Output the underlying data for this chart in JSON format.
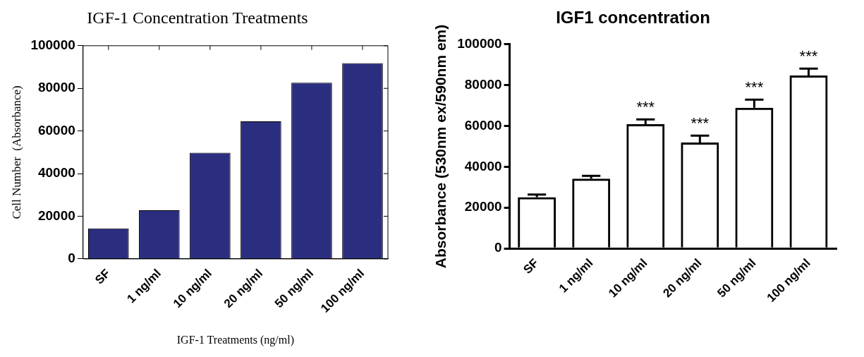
{
  "chart_data": [
    {
      "type": "bar",
      "title": "IGF-1 Concentration Treatments",
      "xlabel": "IGF-1 Treatments (ng/ml)",
      "ylabel": "Cell Number  (Absorbance)",
      "categories": [
        "SF",
        "1 ng/ml",
        "10 ng/ml",
        "20 ng/ml",
        "50 ng/ml",
        "100 ng/ml"
      ],
      "values": [
        14300,
        22800,
        49800,
        64500,
        82600,
        91800
      ],
      "color": "#2b2e7f",
      "ylim": [
        0,
        100000
      ],
      "yticks": [
        0,
        20000,
        40000,
        60000,
        80000,
        100000
      ],
      "grid": false,
      "legend": false
    },
    {
      "type": "bar",
      "title": "IGF1 concentration",
      "ylabel": "Absorbance (530nm ex/590nm em)",
      "categories": [
        "SF",
        "1 ng/ml",
        "10 ng/ml",
        "20 ng/ml",
        "50 ng/ml",
        "100 ng/ml"
      ],
      "values": [
        25100,
        34200,
        60900,
        51900,
        68900,
        84700
      ],
      "color": "#000000",
      "errors": [
        1300,
        1400,
        2300,
        3400,
        4000,
        3400
      ],
      "ylim": [
        0,
        100000
      ],
      "yticks": [
        0,
        20000,
        40000,
        60000,
        80000,
        100000
      ],
      "grid": false,
      "legend": false,
      "annotations": [
        "***",
        "***",
        "***",
        "***"
      ]
    }
  ]
}
